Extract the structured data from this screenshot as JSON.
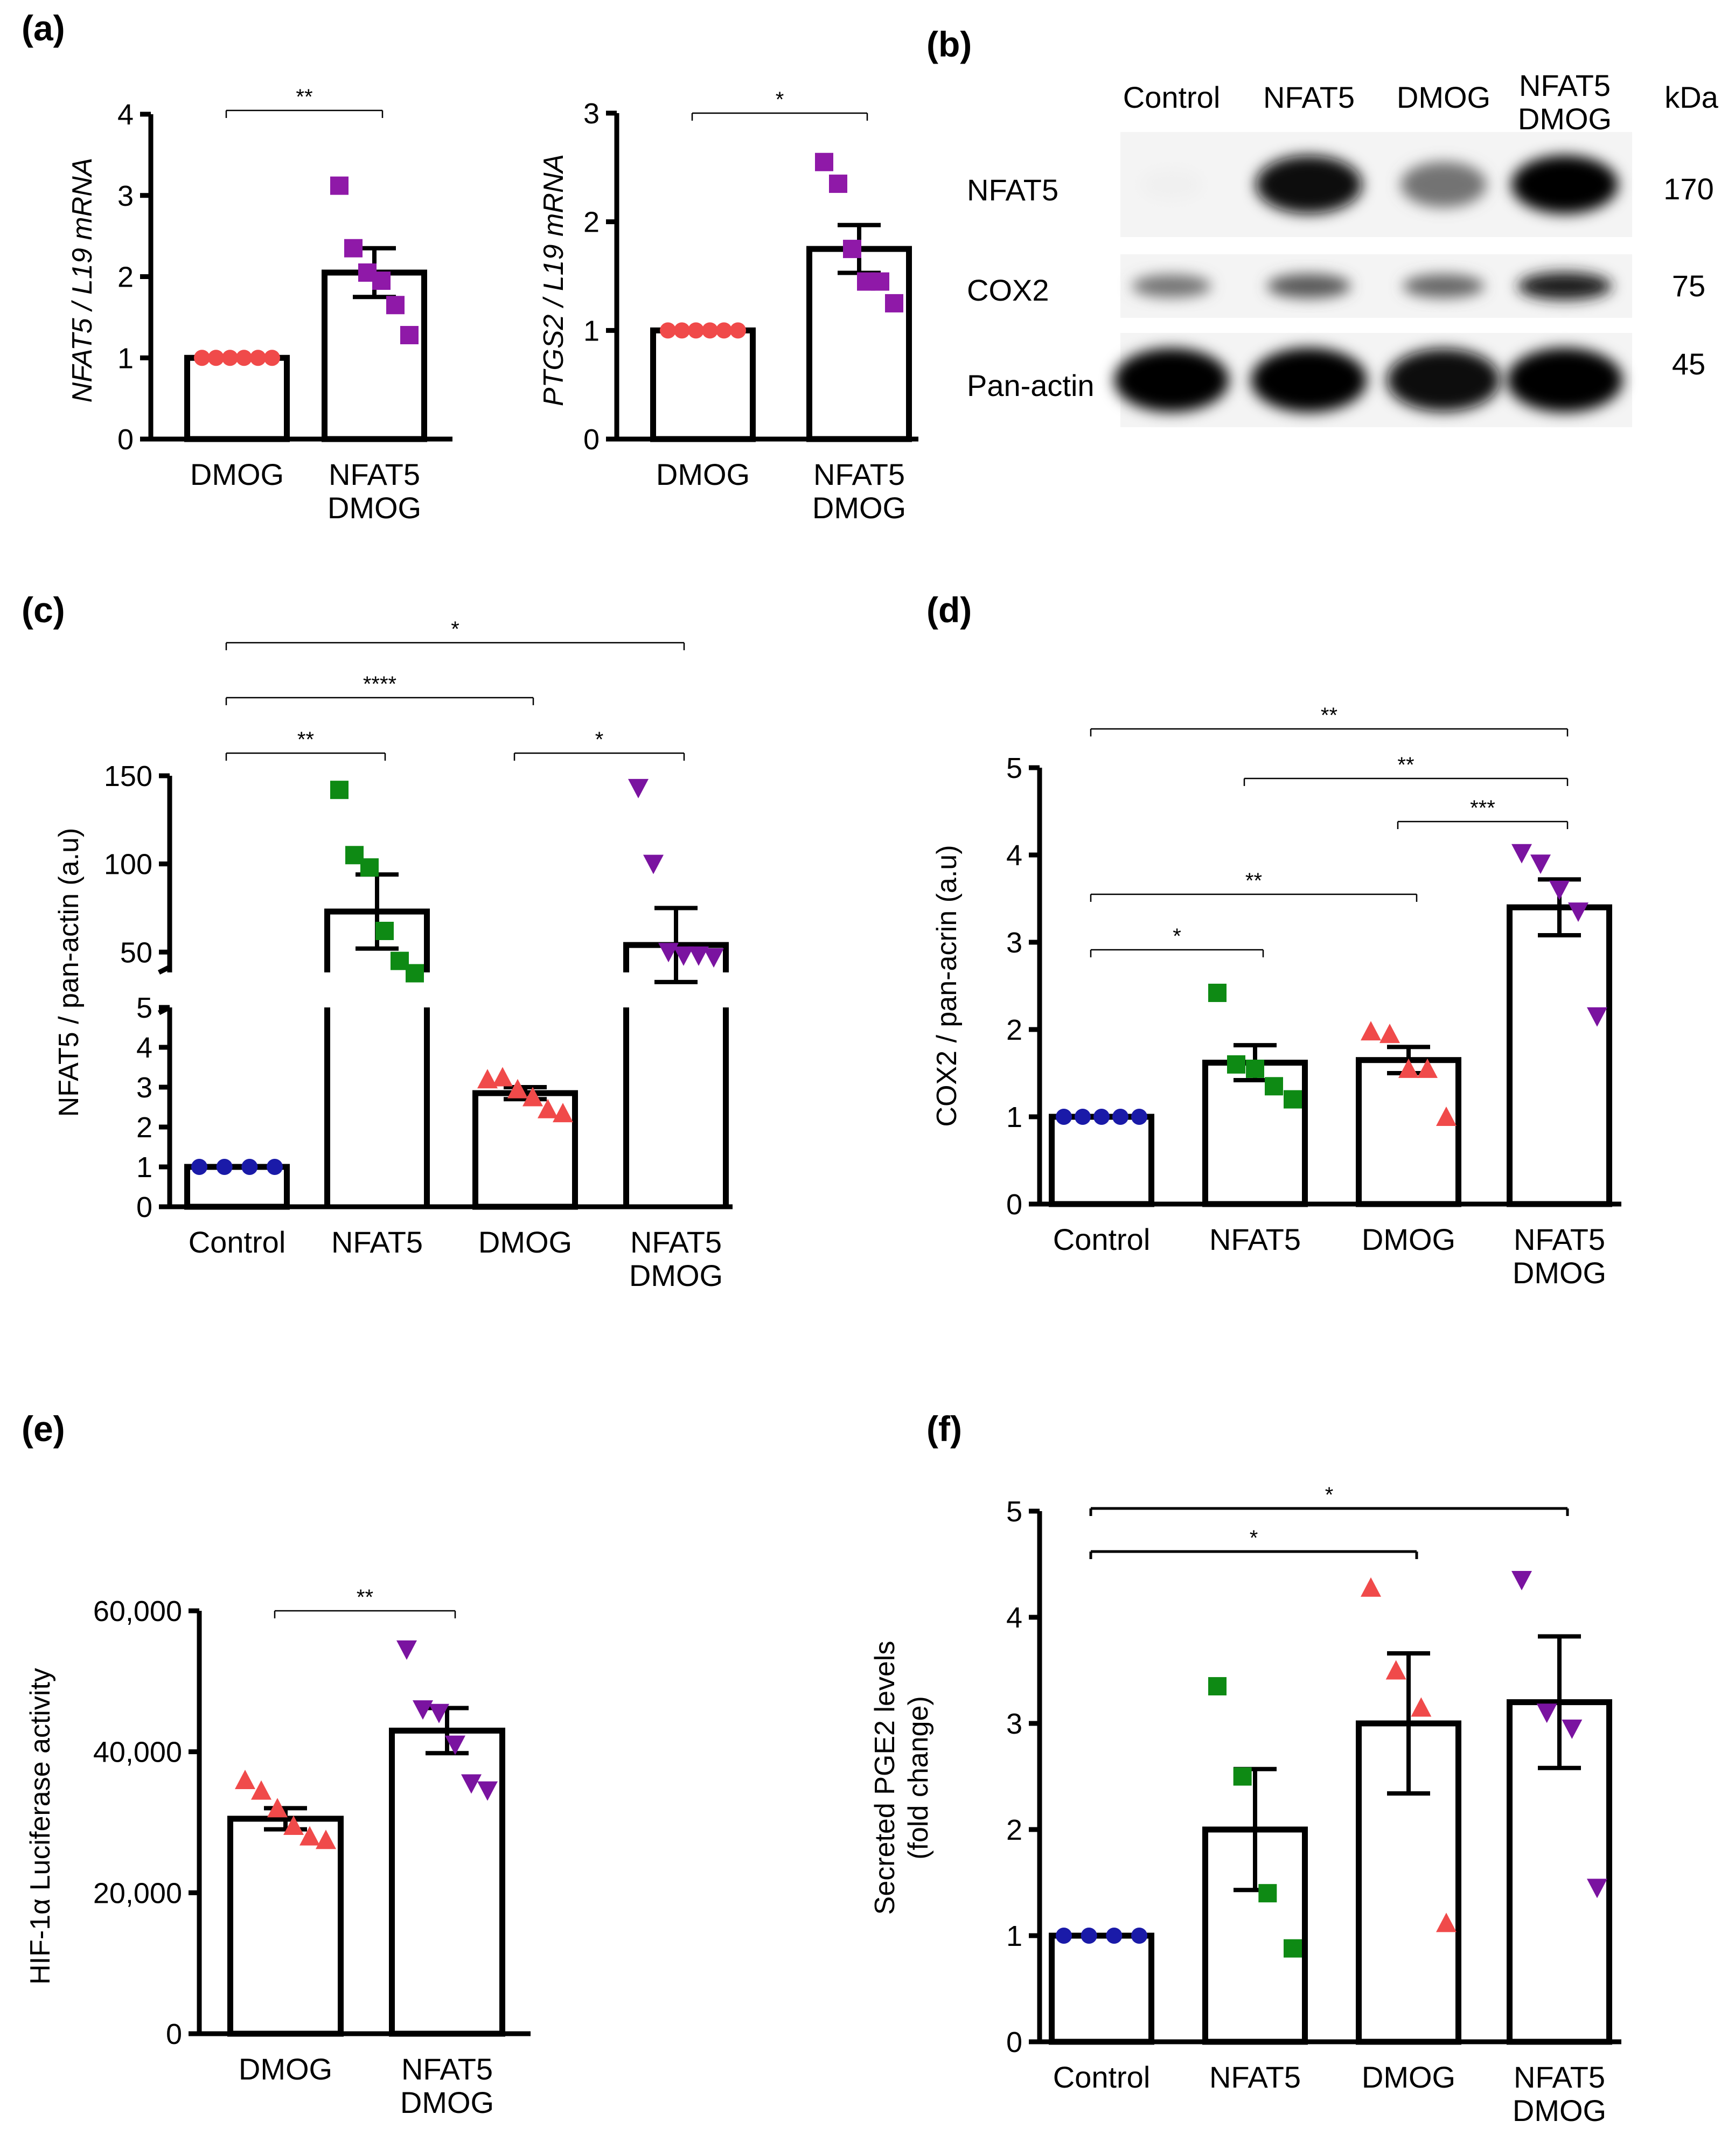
{
  "figure": {
    "colors": {
      "control": "#1a1aa8",
      "nfat5": "#0e8a14",
      "dmog": "#f04a4a",
      "nfat5_dmog": "#7a13a0",
      "qpcr_dmog": "#f04a4a",
      "qpcr_nfat5_dmog": "#8f19a8"
    },
    "panel_labels": {
      "a": "(a)",
      "b": "(b)",
      "c": "(c)",
      "d": "(d)",
      "e": "(e)",
      "f": "(f)"
    }
  },
  "blot": {
    "lanes": [
      "Control",
      "NFAT5",
      "DMOG",
      "NFAT5 DMOG"
    ],
    "kda_header": "kDa",
    "rows": [
      {
        "protein": "NFAT5",
        "kda": "170",
        "intensity": [
          0.06,
          0.97,
          0.55,
          0.98
        ]
      },
      {
        "protein": "COX2",
        "kda": "75",
        "intensity": [
          0.55,
          0.65,
          0.6,
          0.88
        ]
      },
      {
        "protein": "Pan-actin",
        "kda": "45",
        "intensity": [
          0.98,
          1.0,
          0.95,
          1.0
        ]
      }
    ]
  },
  "chart_data": [
    {
      "id": "a1",
      "panel": "(a)",
      "type": "bar",
      "categories": [
        "DMOG",
        "NFAT5 DMOG"
      ],
      "ylabel": "NFAT5 / L19 mRNA",
      "ylim": [
        0,
        4
      ],
      "yticks": [
        "0",
        "1",
        "2",
        "3",
        "4"
      ],
      "means": [
        1.0,
        2.05
      ],
      "sem": [
        0,
        0.3
      ],
      "points": [
        [
          1,
          1,
          1,
          1,
          1,
          1
        ],
        [
          3.12,
          2.35,
          2.05,
          1.95,
          1.65,
          1.28
        ]
      ],
      "comparisons": [
        {
          "groups": [
            0,
            1
          ],
          "label": "**"
        }
      ]
    },
    {
      "id": "a2",
      "panel": "(a)",
      "type": "bar",
      "categories": [
        "DMOG",
        "NFAT5 DMOG"
      ],
      "ylabel": "PTGS2 / L19 mRNA",
      "ylim": [
        0,
        3
      ],
      "yticks": [
        "0",
        "1",
        "2",
        "3"
      ],
      "means": [
        1.0,
        1.75
      ],
      "sem": [
        0,
        0.22
      ],
      "points": [
        [
          1,
          1,
          1,
          1,
          1,
          1
        ],
        [
          2.55,
          2.35,
          1.75,
          1.45,
          1.45,
          1.25
        ]
      ],
      "comparisons": [
        {
          "groups": [
            0,
            1
          ],
          "label": "*"
        }
      ]
    },
    {
      "id": "c",
      "panel": "(c)",
      "type": "bar",
      "categories": [
        "Control",
        "NFAT5",
        "DMOG",
        "NFAT5 DMOG"
      ],
      "ylabel": "NFAT5 / pan-actin (a.u)",
      "lower_axis": {
        "ylim": [
          0,
          5
        ],
        "yticks": [
          "0",
          "1",
          "2",
          "3",
          "4",
          "5"
        ]
      },
      "upper_axis": {
        "ylim": [
          40,
          150
        ],
        "yticks": [
          "50",
          "100",
          "150"
        ]
      },
      "means": [
        1.0,
        73,
        2.85,
        54
      ],
      "sem": [
        0,
        21,
        0.15,
        21
      ],
      "points": [
        [
          1,
          1,
          1,
          1
        ],
        [
          142,
          105,
          98,
          62,
          45,
          38
        ],
        [
          3.2,
          3.25,
          2.95,
          2.75,
          2.45,
          2.35
        ],
        [
          143,
          100,
          50,
          48,
          48,
          47
        ]
      ],
      "comparisons": [
        {
          "groups": [
            0,
            1
          ],
          "label": "**"
        },
        {
          "groups": [
            0,
            2
          ],
          "label": "****"
        },
        {
          "groups": [
            2,
            3
          ],
          "label": "*"
        },
        {
          "groups": [
            0,
            3
          ],
          "label": "*"
        }
      ]
    },
    {
      "id": "d",
      "panel": "(d)",
      "type": "bar",
      "categories": [
        "Control",
        "NFAT5",
        "DMOG",
        "NFAT5 DMOG"
      ],
      "ylabel": "COX2 / pan-acrin (a.u)",
      "ylim": [
        0,
        5
      ],
      "yticks": [
        "0",
        "1",
        "2",
        "3",
        "4",
        "5"
      ],
      "means": [
        1.0,
        1.62,
        1.65,
        3.4
      ],
      "sem": [
        0,
        0.2,
        0.15,
        0.32
      ],
      "points": [
        [
          1,
          1,
          1,
          1,
          1
        ],
        [
          2.42,
          1.6,
          1.55,
          1.35,
          1.2
        ],
        [
          1.98,
          1.95,
          1.55,
          1.55,
          1.0
        ],
        [
          4.02,
          3.9,
          3.6,
          3.35,
          2.15
        ]
      ],
      "comparisons": [
        {
          "groups": [
            0,
            1
          ],
          "label": "*"
        },
        {
          "groups": [
            0,
            2
          ],
          "label": "**"
        },
        {
          "groups": [
            2,
            3
          ],
          "label": "***"
        },
        {
          "groups": [
            1,
            3
          ],
          "label": "**"
        },
        {
          "groups": [
            0,
            3
          ],
          "label": "**"
        }
      ]
    },
    {
      "id": "e",
      "panel": "(e)",
      "type": "bar",
      "categories": [
        "DMOG",
        "NFAT5 DMOG"
      ],
      "ylabel": "HIF-1α Luciferase activity",
      "ylim": [
        0,
        60000
      ],
      "yticks": [
        "0",
        "20,000",
        "40,000",
        "60,000"
      ],
      "means": [
        30500,
        43000
      ],
      "sem": [
        1500,
        3200
      ],
      "points": [
        [
          36000,
          34500,
          32000,
          29500,
          28000,
          27500
        ],
        [
          54500,
          46000,
          45500,
          41000,
          35500,
          34500
        ]
      ],
      "comparisons": [
        {
          "groups": [
            0,
            1
          ],
          "label": "**"
        }
      ]
    },
    {
      "id": "f",
      "panel": "(f)",
      "type": "bar",
      "categories": [
        "Control",
        "NFAT5",
        "DMOG",
        "NFAT5 DMOG"
      ],
      "ylabel": "Secreted PGE2 levels",
      "ylabel2": "(fold change)",
      "ylim": [
        0,
        5
      ],
      "yticks": [
        "0",
        "1",
        "2",
        "3",
        "4",
        "5"
      ],
      "means": [
        1.0,
        2.0,
        3.0,
        3.2
      ],
      "sem": [
        0,
        0.57,
        0.66,
        0.62
      ],
      "points": [
        [
          1,
          1,
          1,
          1
        ],
        [
          3.35,
          2.5,
          1.4,
          0.88
        ],
        [
          4.28,
          3.5,
          3.15,
          1.12
        ],
        [
          4.35,
          3.1,
          2.95,
          1.45
        ]
      ],
      "comparisons": [
        {
          "groups": [
            0,
            2
          ],
          "label": "*"
        },
        {
          "groups": [
            0,
            3
          ],
          "label": "*"
        }
      ]
    }
  ]
}
